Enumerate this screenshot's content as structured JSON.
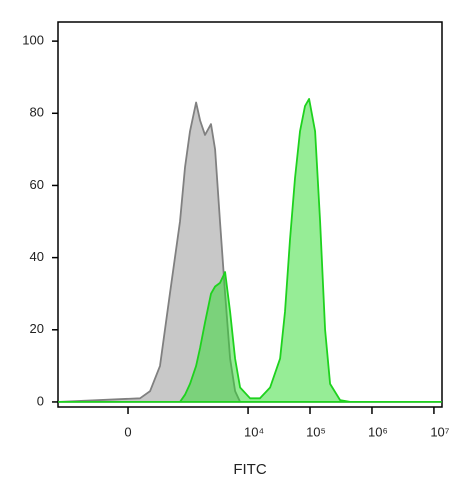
{
  "chart_data": {
    "type": "area",
    "xlabel": "FITC",
    "xscale": "biexponential",
    "x": [
      -1500,
      106,
      211,
      344,
      524,
      781,
      947,
      1146,
      1441,
      1672,
      2014,
      2522,
      2929,
      3527,
      4250,
      5120,
      6170,
      7430,
      10770,
      15600,
      22700,
      32900,
      39500,
      47600,
      57300,
      69000,
      83100,
      96500,
      120600,
      145300,
      174900,
      210700,
      305600,
      443500,
      13000000
    ],
    "series": [
      {
        "color": "#808080",
        "fill": "#c8c8c8",
        "values": [
          0,
          1,
          3,
          10,
          30,
          50,
          65,
          75,
          83,
          78,
          74,
          77,
          70,
          50,
          30,
          12,
          3,
          0,
          0,
          0,
          0,
          0,
          0,
          0,
          0,
          0,
          0,
          0,
          0,
          0,
          0,
          0,
          0,
          0,
          0
        ]
      },
      {
        "color": "#1ed21e",
        "fill": "#2ddc2d",
        "values": [
          0,
          0,
          0,
          0,
          0,
          0,
          2,
          5,
          10,
          15,
          22,
          30,
          32,
          33,
          36,
          25,
          12,
          4,
          1,
          1,
          4,
          12,
          25,
          45,
          62,
          75,
          82,
          84,
          75,
          50,
          20,
          5,
          0.5,
          0,
          0
        ]
      }
    ],
    "xlim": [
      -1550,
      13500000
    ],
    "xticks": [
      0,
      {
        "value": 10000,
        "label": "10⁴"
      },
      {
        "value": 100000,
        "label": "10⁵"
      },
      {
        "value": 1000000,
        "label": "10⁶"
      },
      {
        "value": 10000000,
        "label": "10⁷"
      }
    ],
    "ylim": [
      -1.4,
      105.3
    ],
    "yticks": [
      0,
      20,
      40,
      60,
      80,
      100
    ]
  }
}
